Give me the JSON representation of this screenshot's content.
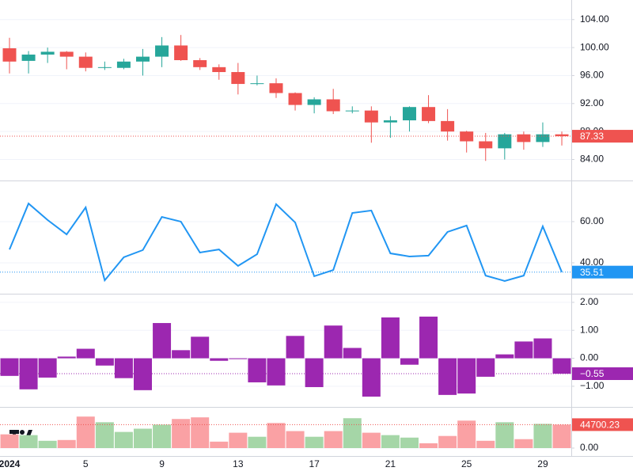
{
  "chart_data": [
    {
      "type": "candlestick",
      "up_color": "#26a69a",
      "down_color": "#ef5350",
      "grid": true,
      "ylim": [
        81,
        106.8
      ],
      "yticks": [
        {
          "value": 84,
          "label": "84.00"
        },
        {
          "value": 88,
          "label": "88.00"
        },
        {
          "value": 92,
          "label": "92.00"
        },
        {
          "value": 96,
          "label": "96.00"
        },
        {
          "value": 100,
          "label": "100.00"
        },
        {
          "value": 104,
          "label": "104.00"
        }
      ],
      "open": [
        99.9,
        98.1,
        99.0,
        99.4,
        98.7,
        97.1,
        97.1,
        98.0,
        98.7,
        100.3,
        98.2,
        97.2,
        96.5,
        94.8,
        94.9,
        93.5,
        91.8,
        92.6,
        90.9,
        91.0,
        89.3,
        89.6,
        91.5,
        89.5,
        88.0,
        86.6,
        85.6,
        87.6,
        86.5,
        87.6
      ],
      "high": [
        101.4,
        99.5,
        100.0,
        99.5,
        99.3,
        98.0,
        98.4,
        99.8,
        101.5,
        101.8,
        98.5,
        97.6,
        97.8,
        96.0,
        95.6,
        93.6,
        92.9,
        94.1,
        91.6,
        91.6,
        90.2,
        91.6,
        93.2,
        91.2,
        88.1,
        87.8,
        87.8,
        88.0,
        89.3,
        88.0
      ],
      "low": [
        96.3,
        96.3,
        97.8,
        96.9,
        96.6,
        96.8,
        96.9,
        96.0,
        97.2,
        98.1,
        96.8,
        95.4,
        93.3,
        94.6,
        92.8,
        91.0,
        90.6,
        90.5,
        90.6,
        86.4,
        87.1,
        88.0,
        89.2,
        86.7,
        85.0,
        83.8,
        84.0,
        85.4,
        85.8,
        86.0
      ],
      "close": [
        98.0,
        99.0,
        99.4,
        98.7,
        97.1,
        97.2,
        98.0,
        98.7,
        100.3,
        98.2,
        97.2,
        96.5,
        94.8,
        94.9,
        93.5,
        91.8,
        92.6,
        90.9,
        91.0,
        89.3,
        89.6,
        91.5,
        89.5,
        88.0,
        86.6,
        85.6,
        87.6,
        86.5,
        87.6,
        87.33
      ]
    },
    {
      "type": "line",
      "color": "#2196f3",
      "grid": true,
      "ylim": [
        25.4,
        79.2
      ],
      "yticks": [
        {
          "value": 40,
          "label": "40.00"
        },
        {
          "value": 60,
          "label": "60.00"
        }
      ],
      "values": [
        46.5,
        68.8,
        60.8,
        53.8,
        66.9,
        31.5,
        42.7,
        46.2,
        62.3,
        60.0,
        45.0,
        46.5,
        38.5,
        44.2,
        68.5,
        59.6,
        33.5,
        36.5,
        64.2,
        65.4,
        44.6,
        43.1,
        43.5,
        55.0,
        58.1,
        33.8,
        31.2,
        33.8,
        57.7,
        35.51
      ]
    },
    {
      "type": "bar",
      "color": "#9c27b0",
      "grid": true,
      "ylim": [
        -1.71,
        2.28
      ],
      "yticks": [
        {
          "value": -1,
          "label": "−1.00"
        },
        {
          "value": 0,
          "label": "0.00"
        },
        {
          "value": 1,
          "label": "1.00"
        },
        {
          "value": 2,
          "label": "2.00"
        }
      ],
      "values": [
        -0.63,
        -1.11,
        -0.69,
        0.06,
        0.34,
        -0.26,
        -0.71,
        -1.14,
        1.26,
        0.29,
        0.77,
        -0.09,
        -0.03,
        -0.86,
        -0.97,
        0.8,
        -1.03,
        1.17,
        0.37,
        -1.37,
        1.46,
        -0.23,
        1.49,
        -1.31,
        -1.26,
        -0.66,
        0.14,
        0.6,
        0.71,
        -0.55
      ],
      "value_labels": [
        null,
        null,
        null,
        null,
        null,
        null,
        null,
        null,
        null,
        null,
        null,
        null,
        null,
        null,
        null,
        null,
        null,
        null,
        null,
        null,
        null,
        null,
        null,
        null,
        null,
        null,
        null,
        null,
        null,
        "−0.55"
      ]
    },
    {
      "type": "volume",
      "up_color": "#a5d6a7",
      "down_color": "#faa1a4",
      "grid": true,
      "ylim": [
        0,
        75500
      ],
      "yticks": [
        {
          "value": 0,
          "label": "0.00"
        }
      ],
      "categories": [
        "2024",
        null,
        null,
        null,
        "5",
        null,
        null,
        null,
        "9",
        null,
        null,
        null,
        "13",
        null,
        null,
        null,
        "17",
        null,
        null,
        null,
        "21",
        null,
        null,
        null,
        "25",
        null,
        null,
        null,
        "29",
        null
      ],
      "values": [
        26200,
        24700,
        13900,
        15400,
        60100,
        49300,
        30800,
        37000,
        44700,
        55500,
        58600,
        12300,
        29300,
        21600,
        47800,
        32400,
        21600,
        32400,
        57000,
        29300,
        24700,
        20000,
        9200,
        23100,
        52400,
        13900,
        49300,
        17000,
        46200,
        44700.23
      ]
    }
  ]
}
